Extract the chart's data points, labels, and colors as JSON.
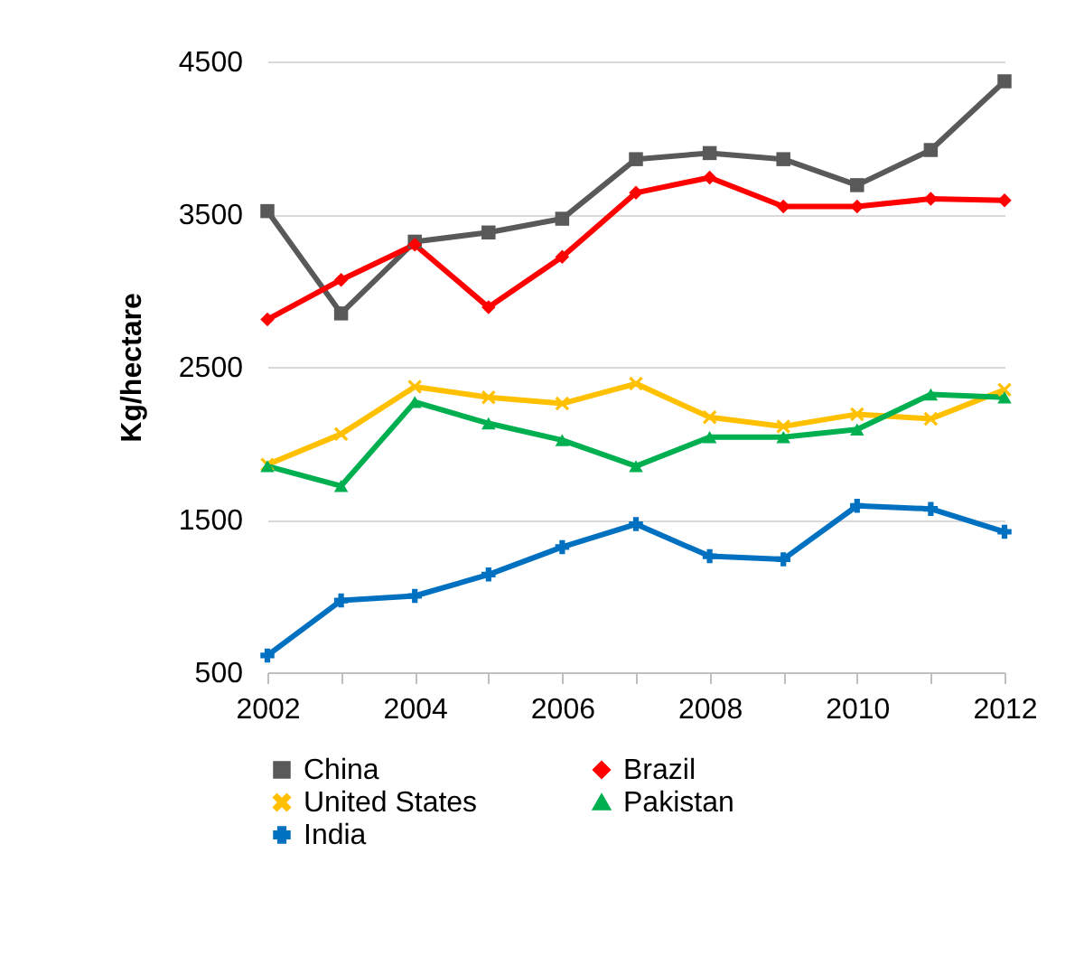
{
  "chart_data": {
    "type": "line",
    "ylabel": "Kg/hectare",
    "x": [
      2002,
      2003,
      2004,
      2005,
      2006,
      2007,
      2008,
      2009,
      2010,
      2011,
      2012
    ],
    "xlim": [
      2002,
      2012
    ],
    "xticks": [
      2002,
      {
        "value": 2003,
        "label": null
      },
      2004,
      {
        "value": 2005,
        "label": null
      },
      2006,
      {
        "value": 2007,
        "label": null
      },
      2008,
      {
        "value": 2009,
        "label": null
      },
      2010,
      {
        "value": 2011,
        "label": null
      },
      2012
    ],
    "ylim": [
      500,
      4500
    ],
    "yticks": [
      500,
      1500,
      2500,
      3500,
      4500
    ],
    "grid": "y",
    "legend": "bottom",
    "series": [
      {
        "name": "China",
        "color": "#595959",
        "marker": "square",
        "values": [
          3520,
          2850,
          3320,
          3380,
          3470,
          3860,
          3900,
          3860,
          3690,
          3920,
          4370
        ]
      },
      {
        "name": "Brazil",
        "color": "#ff0000",
        "marker": "diamond",
        "values": [
          2810,
          3070,
          3300,
          2890,
          3220,
          3640,
          3740,
          3550,
          3550,
          3600,
          3590
        ]
      },
      {
        "name": "United States",
        "color": "#ffc000",
        "marker": "x",
        "values": [
          1860,
          2060,
          2370,
          2300,
          2260,
          2390,
          2170,
          2110,
          2190,
          2160,
          2350
        ]
      },
      {
        "name": "Pakistan",
        "color": "#00b050",
        "marker": "triangle",
        "values": [
          1850,
          1720,
          2270,
          2130,
          2020,
          1850,
          2040,
          2040,
          2090,
          2320,
          2300
        ]
      },
      {
        "name": "India",
        "color": "#0070c0",
        "marker": "cross",
        "values": [
          610,
          970,
          1000,
          1140,
          1320,
          1470,
          1260,
          1240,
          1590,
          1570,
          1420
        ]
      }
    ]
  }
}
